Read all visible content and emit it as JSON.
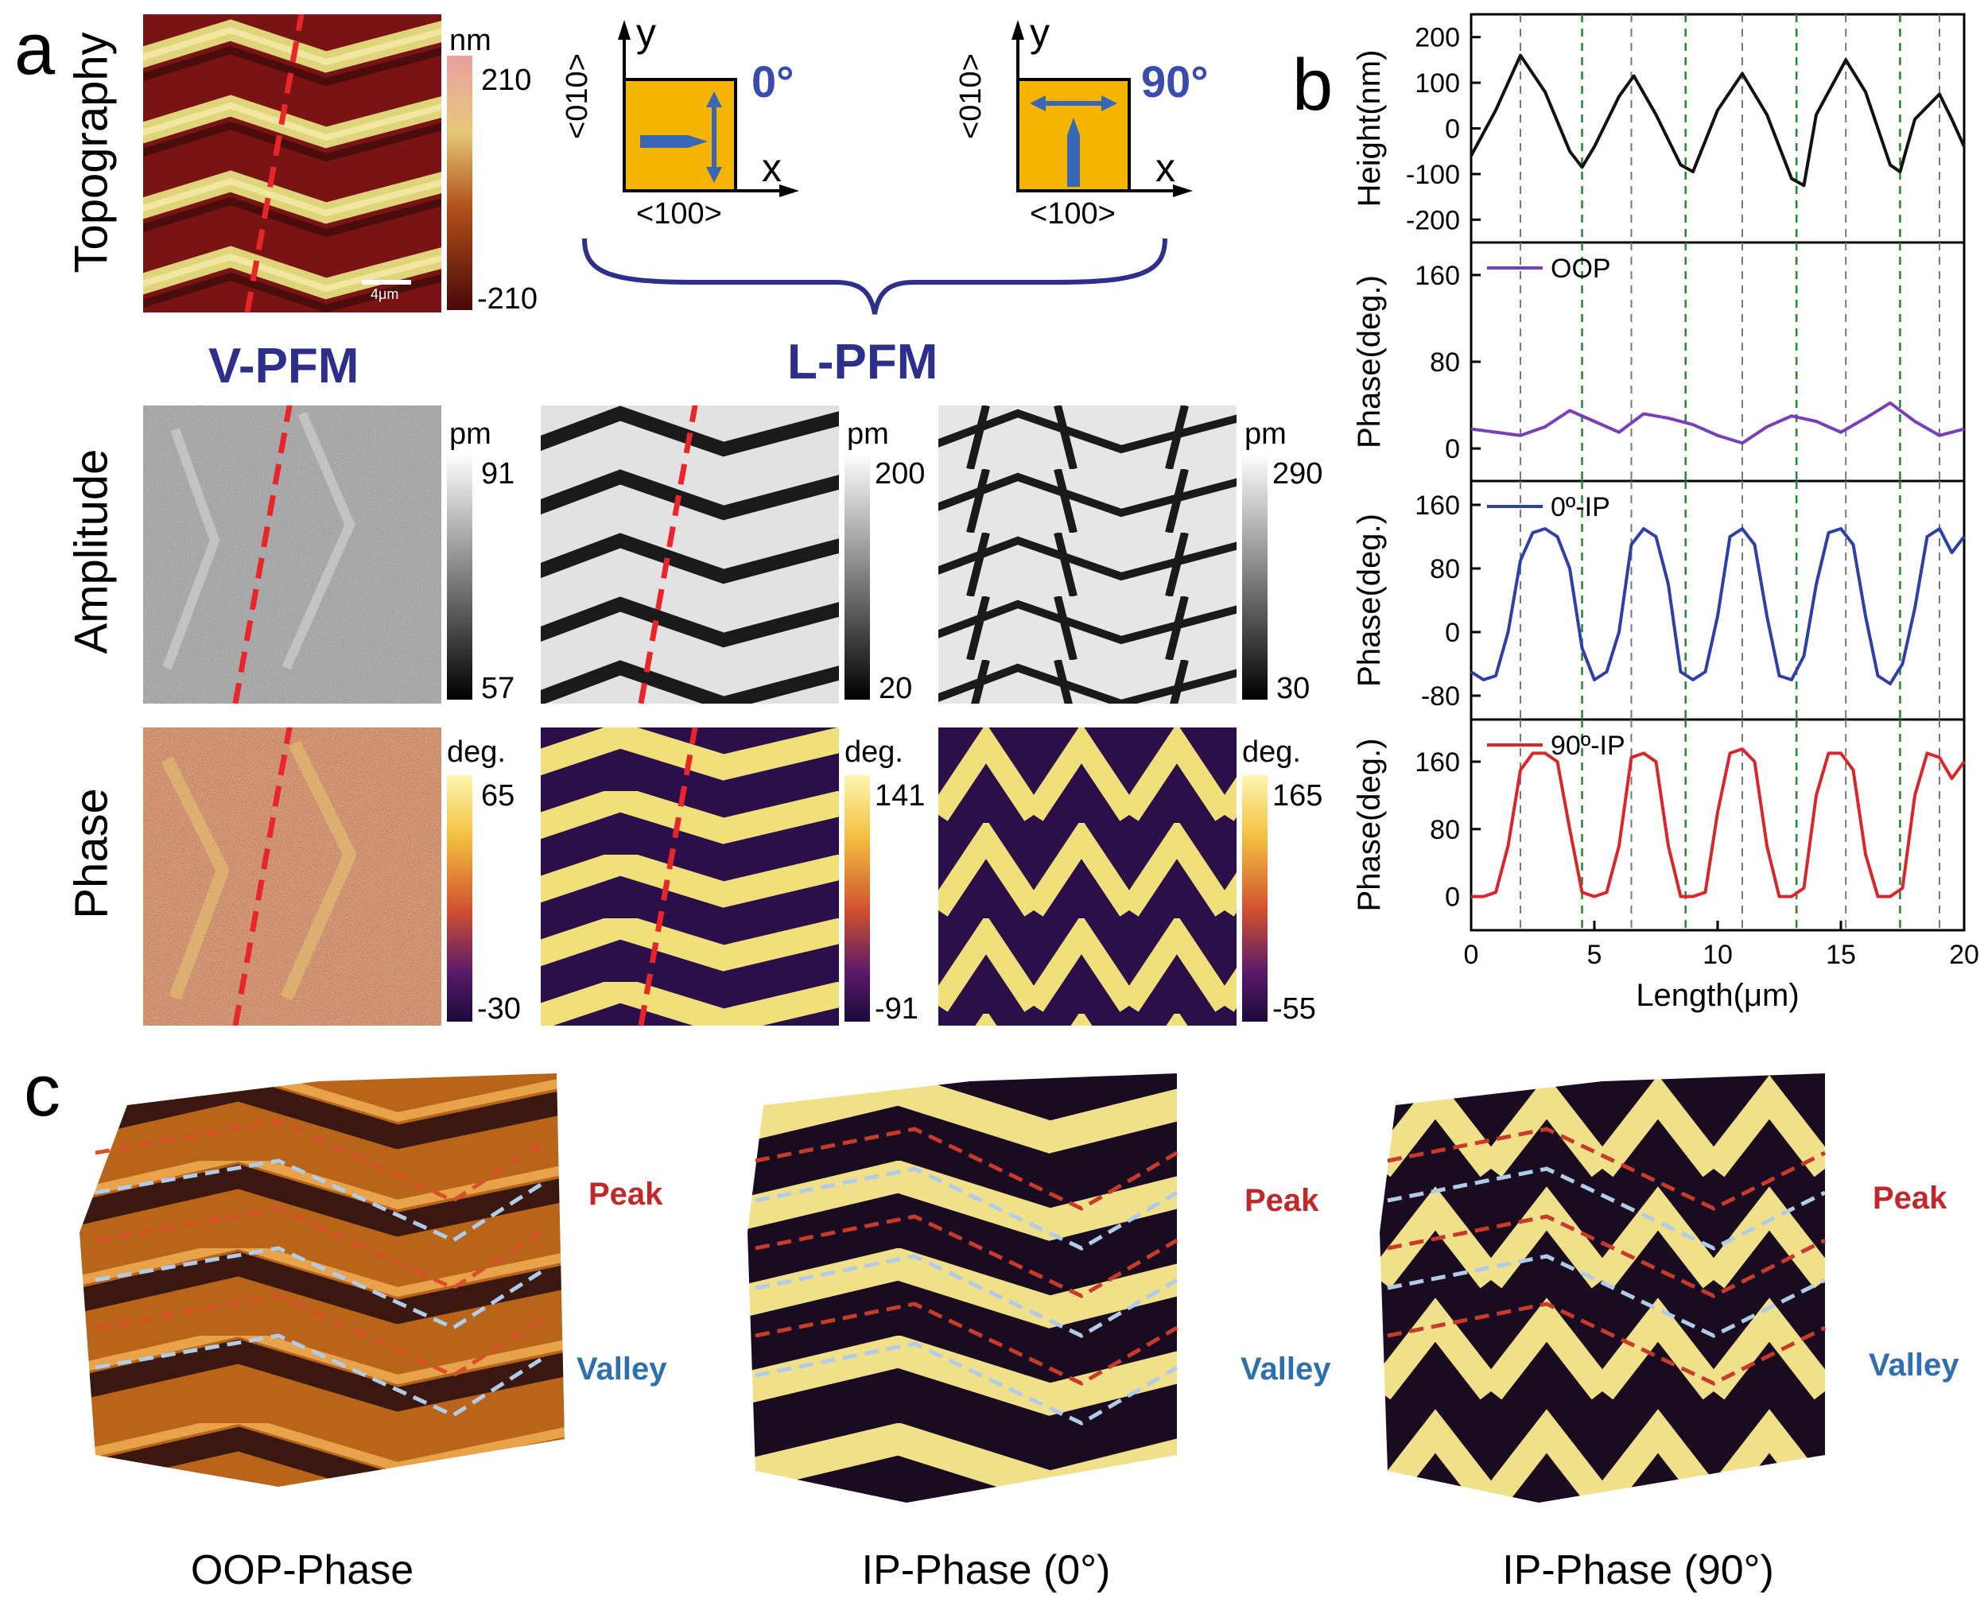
{
  "panel_a": {
    "letter": "a",
    "row_labels": [
      "Topography",
      "Amplitude",
      "Phase"
    ],
    "vpfm_label": "V-PFM",
    "lpfm_label": "L-PFM",
    "topography_colorbar": {
      "unit": "nm",
      "max": "210",
      "min": "-210"
    },
    "amplitude_colorbars": [
      {
        "unit": "pm",
        "max": "91",
        "min": "57"
      },
      {
        "unit": "pm",
        "max": "200",
        "min": "20"
      },
      {
        "unit": "pm",
        "max": "290",
        "min": "30"
      }
    ],
    "phase_colorbars": [
      {
        "unit": "deg.",
        "max": "65",
        "min": "-30"
      },
      {
        "unit": "deg.",
        "max": "141",
        "min": "-91"
      },
      {
        "unit": "deg.",
        "max": "165",
        "min": "-55"
      }
    ],
    "scale_bar": "4μm",
    "schematic_0": {
      "y": "y",
      "x": "x",
      "ylab": "<010>",
      "xlab": "<100>",
      "angle": "0°"
    },
    "schematic_90": {
      "y": "y",
      "x": "x",
      "ylab": "<010>",
      "xlab": "<100>",
      "angle": "90°"
    },
    "colors": {
      "vpfm": "#2e2f8c",
      "red_dash": "#e8262a",
      "box": "#f5b400",
      "arrow": "#3a67b5"
    }
  },
  "panel_b": {
    "letter": "b",
    "xlabel": "Length(μm)",
    "xticks": [
      "0",
      "5",
      "10",
      "15",
      "20"
    ]
  },
  "chart_data": [
    {
      "type": "line",
      "ylabel": "Height(nm)",
      "yticks": [
        "200",
        "100",
        "0",
        "-100",
        "-200"
      ],
      "ylim": [
        -250,
        250
      ],
      "series": [
        {
          "color": "#111111",
          "x": [
            0,
            1,
            2,
            3,
            4,
            4.5,
            5,
            6,
            6.6,
            7.5,
            8.5,
            9,
            10,
            11,
            12,
            13,
            13.5,
            14,
            15.2,
            16,
            17,
            17.4,
            18,
            19,
            19.5,
            20
          ],
          "values": [
            -60,
            40,
            160,
            80,
            -50,
            -85,
            -40,
            70,
            115,
            30,
            -80,
            -95,
            40,
            120,
            30,
            -110,
            -125,
            30,
            150,
            80,
            -80,
            -95,
            20,
            75,
            20,
            -40
          ]
        }
      ]
    },
    {
      "type": "line",
      "ylabel": "Phase(deg.)",
      "yticks": [
        "160",
        "80",
        "0"
      ],
      "ylim": [
        -30,
        190
      ],
      "series": [
        {
          "name": "OOP",
          "color": "#7a3fb8",
          "x": [
            0,
            1,
            2,
            3,
            4,
            5,
            6,
            7,
            8,
            9,
            10,
            11,
            12,
            13,
            14,
            15,
            16,
            17,
            18,
            19,
            20
          ],
          "values": [
            18,
            15,
            12,
            20,
            35,
            25,
            15,
            32,
            28,
            22,
            12,
            5,
            20,
            30,
            25,
            15,
            28,
            42,
            25,
            12,
            18
          ]
        }
      ]
    },
    {
      "type": "line",
      "ylabel": "Phase(deg.)",
      "yticks": [
        "160",
        "80",
        "0",
        "-80"
      ],
      "ylim": [
        -110,
        190
      ],
      "series": [
        {
          "name": "0º-IP",
          "color": "#2d3fa8",
          "x": [
            0,
            0.5,
            1,
            1.5,
            2,
            2.5,
            3,
            3.5,
            4,
            4.5,
            5,
            5.5,
            6,
            6.5,
            7,
            7.5,
            8,
            8.5,
            9,
            9.5,
            10,
            10.5,
            11,
            11.5,
            12,
            12.5,
            13,
            13.5,
            14,
            14.5,
            15,
            15.5,
            16,
            16.5,
            17,
            17.5,
            18,
            18.5,
            19,
            19.5,
            20
          ],
          "values": [
            -50,
            -60,
            -55,
            0,
            90,
            125,
            130,
            120,
            80,
            -20,
            -60,
            -50,
            0,
            110,
            130,
            120,
            60,
            -50,
            -60,
            -50,
            20,
            120,
            130,
            110,
            20,
            -55,
            -60,
            -30,
            60,
            125,
            130,
            110,
            20,
            -55,
            -65,
            -40,
            30,
            120,
            130,
            100,
            120
          ]
        }
      ]
    },
    {
      "type": "line",
      "ylabel": "Phase(deg.)",
      "yticks": [
        "160",
        "80",
        "0"
      ],
      "ylim": [
        -40,
        210
      ],
      "series": [
        {
          "name": "90º-IP",
          "color": "#d8262a",
          "x": [
            0,
            0.5,
            1,
            1.5,
            2,
            2.5,
            3,
            3.5,
            4,
            4.5,
            5,
            5.5,
            6,
            6.5,
            7,
            7.5,
            8,
            8.5,
            9,
            9.5,
            10,
            10.5,
            11,
            11.5,
            12,
            12.5,
            13,
            13.5,
            14,
            14.5,
            15,
            15.5,
            16,
            16.5,
            17,
            17.5,
            18,
            18.5,
            19,
            19.5,
            20
          ],
          "values": [
            0,
            0,
            5,
            60,
            150,
            170,
            170,
            160,
            80,
            5,
            0,
            5,
            60,
            165,
            170,
            160,
            60,
            0,
            0,
            5,
            100,
            170,
            175,
            160,
            60,
            0,
            0,
            10,
            120,
            170,
            170,
            150,
            50,
            0,
            0,
            10,
            120,
            170,
            165,
            140,
            160
          ]
        }
      ]
    }
  ],
  "panel_c": {
    "letter": "c",
    "captions": [
      "OOP-Phase",
      "IP-Phase (0°)",
      "IP-Phase (90°)"
    ],
    "peak": "Peak",
    "valley": "Valley"
  }
}
